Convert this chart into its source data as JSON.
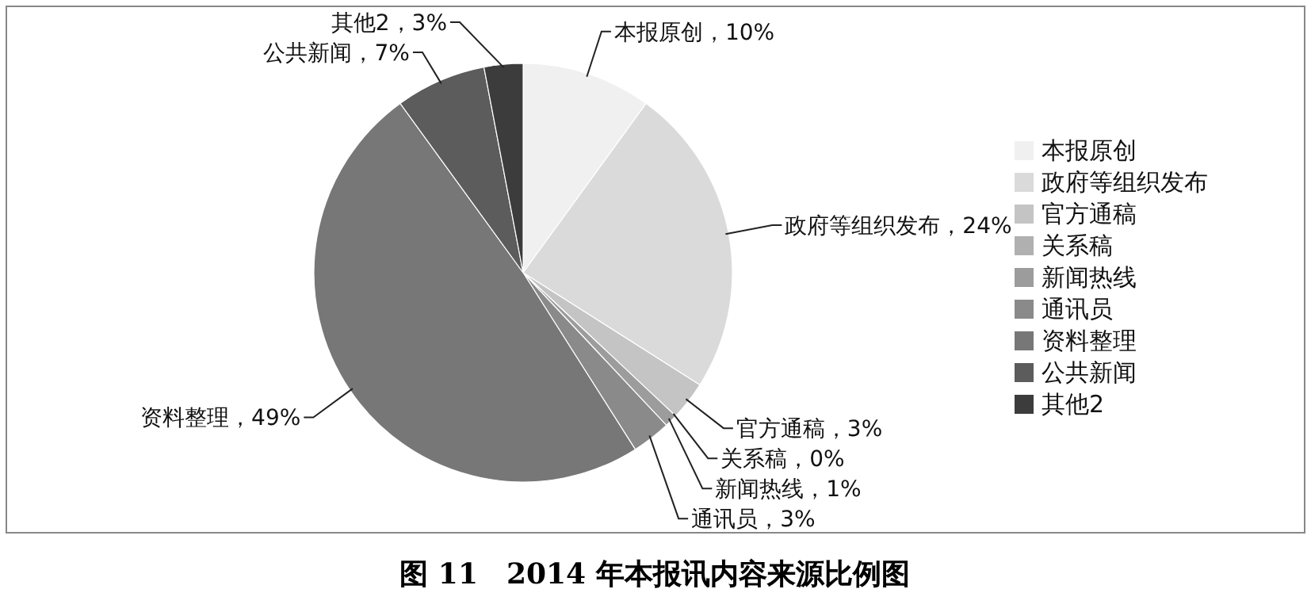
{
  "chart_data": {
    "type": "pie",
    "title": "图 11　2014 年本报讯内容来源比例图",
    "categories": [
      "本报原创",
      "政府等组织发布",
      "官方通稿",
      "关系稿",
      "新闻热线",
      "通讯员",
      "资料整理",
      "公共新闻",
      "其他2"
    ],
    "values": [
      10,
      24,
      3,
      0,
      1,
      3,
      49,
      7,
      3
    ],
    "colors": [
      "#f0f0f0",
      "#dadada",
      "#c4c4c4",
      "#b0b0b0",
      "#9c9c9c",
      "#8a8a8a",
      "#777777",
      "#5c5c5c",
      "#3c3c3c"
    ],
    "value_labels": [
      "，10%",
      "，24%",
      "，3%",
      "，0%",
      "，1%",
      "，3%",
      "，49%",
      "，7%",
      "，3%"
    ],
    "legend": "right"
  }
}
